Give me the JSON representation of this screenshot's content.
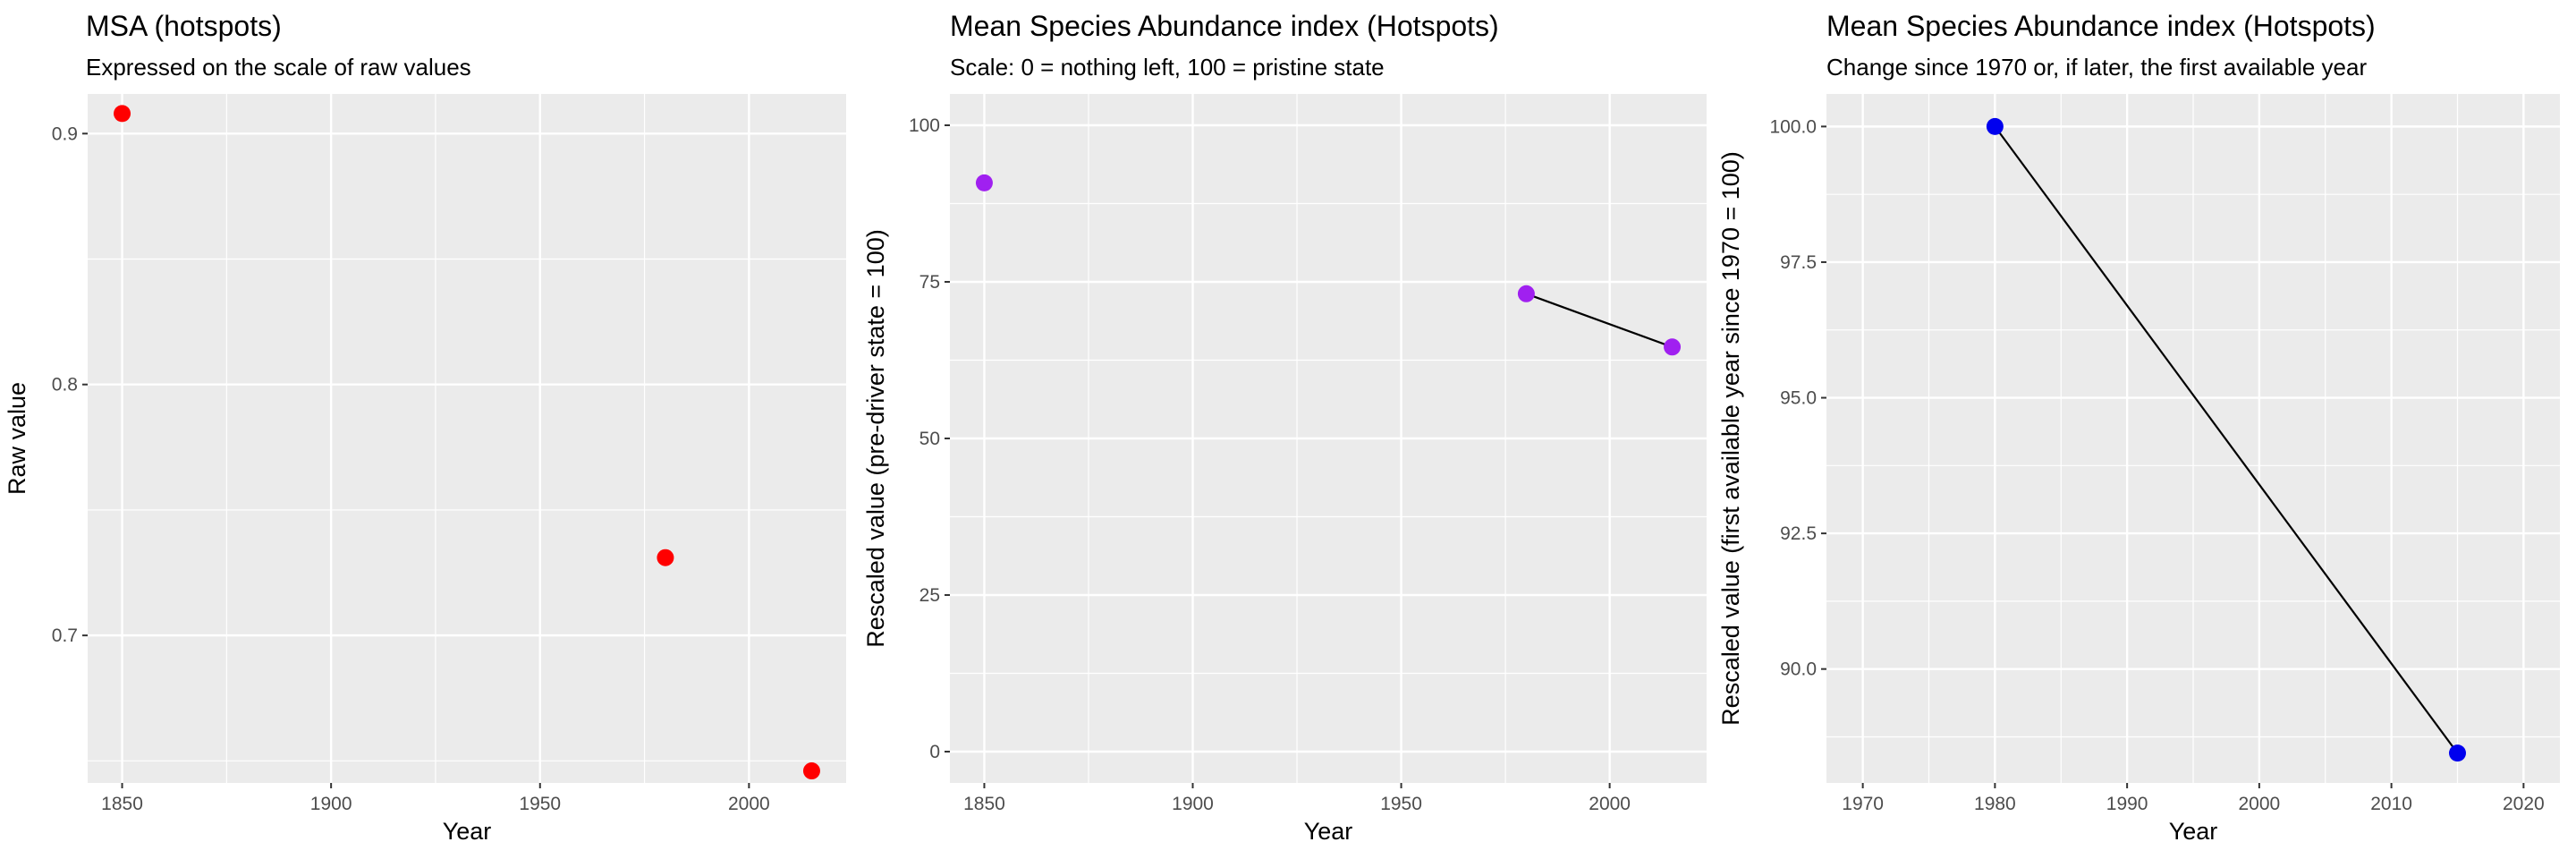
{
  "chart_data": [
    {
      "type": "scatter",
      "title": "MSA (hotspots)",
      "subtitle": "Expressed on the scale of raw values",
      "xlabel": "Year",
      "ylabel": "Raw value",
      "xlim": [
        1841.75,
        2023.25
      ],
      "ylim": [
        0.6412,
        0.9158
      ],
      "xticks": [
        1850,
        1900,
        1950,
        2000
      ],
      "xtick_labels": [
        "1850",
        "1900",
        "1950",
        "2000"
      ],
      "yticks": [
        0.7,
        0.8,
        0.9
      ],
      "ytick_labels": [
        "0.7",
        "0.8",
        "0.9"
      ],
      "grid": true,
      "connect_from_index": -1,
      "point_color": "#ff0000",
      "x": [
        1850,
        1980,
        2015
      ],
      "y": [
        0.908,
        0.731,
        0.646
      ]
    },
    {
      "type": "scatter",
      "title": "Mean Species Abundance index (Hotspots)",
      "subtitle": "Scale: 0 = nothing left, 100 = pristine state",
      "xlabel": "Year",
      "ylabel": "Rescaled value (pre-driver state = 100)",
      "xlim": [
        1841.75,
        2023.25
      ],
      "ylim": [
        -5,
        105
      ],
      "xticks": [
        1850,
        1900,
        1950,
        2000
      ],
      "xtick_labels": [
        "1850",
        "1900",
        "1950",
        "2000"
      ],
      "yticks": [
        0,
        25,
        50,
        75,
        100
      ],
      "ytick_labels": [
        "0",
        "25",
        "50",
        "75",
        "100"
      ],
      "grid": true,
      "connect_from_index": 1,
      "point_color": "#a020f0",
      "line_color": "#000000",
      "x": [
        1850,
        1980,
        2015
      ],
      "y": [
        90.8,
        73.1,
        64.6
      ]
    },
    {
      "type": "line",
      "title": "Mean Species Abundance index (Hotspots)",
      "subtitle": "Change since 1970 or, if later, the first available year",
      "xlabel": "Year",
      "ylabel": "Rescaled value (first available year since 1970 = 100)",
      "xlim": [
        1967.25,
        2022.75
      ],
      "ylim": [
        87.9,
        100.6
      ],
      "xticks": [
        1970,
        1980,
        1990,
        2000,
        2010,
        2020
      ],
      "xtick_labels": [
        "1970",
        "1980",
        "1990",
        "2000",
        "2010",
        "2020"
      ],
      "yticks": [
        90,
        92.5,
        95,
        97.5,
        100
      ],
      "ytick_labels": [
        "90.0",
        "92.5",
        "95.0",
        "97.5",
        "100.0"
      ],
      "grid": true,
      "connect_from_index": 0,
      "point_color": "#0000ee",
      "line_color": "#000000",
      "x": [
        1980,
        2015
      ],
      "y": [
        100,
        88.45
      ]
    }
  ]
}
